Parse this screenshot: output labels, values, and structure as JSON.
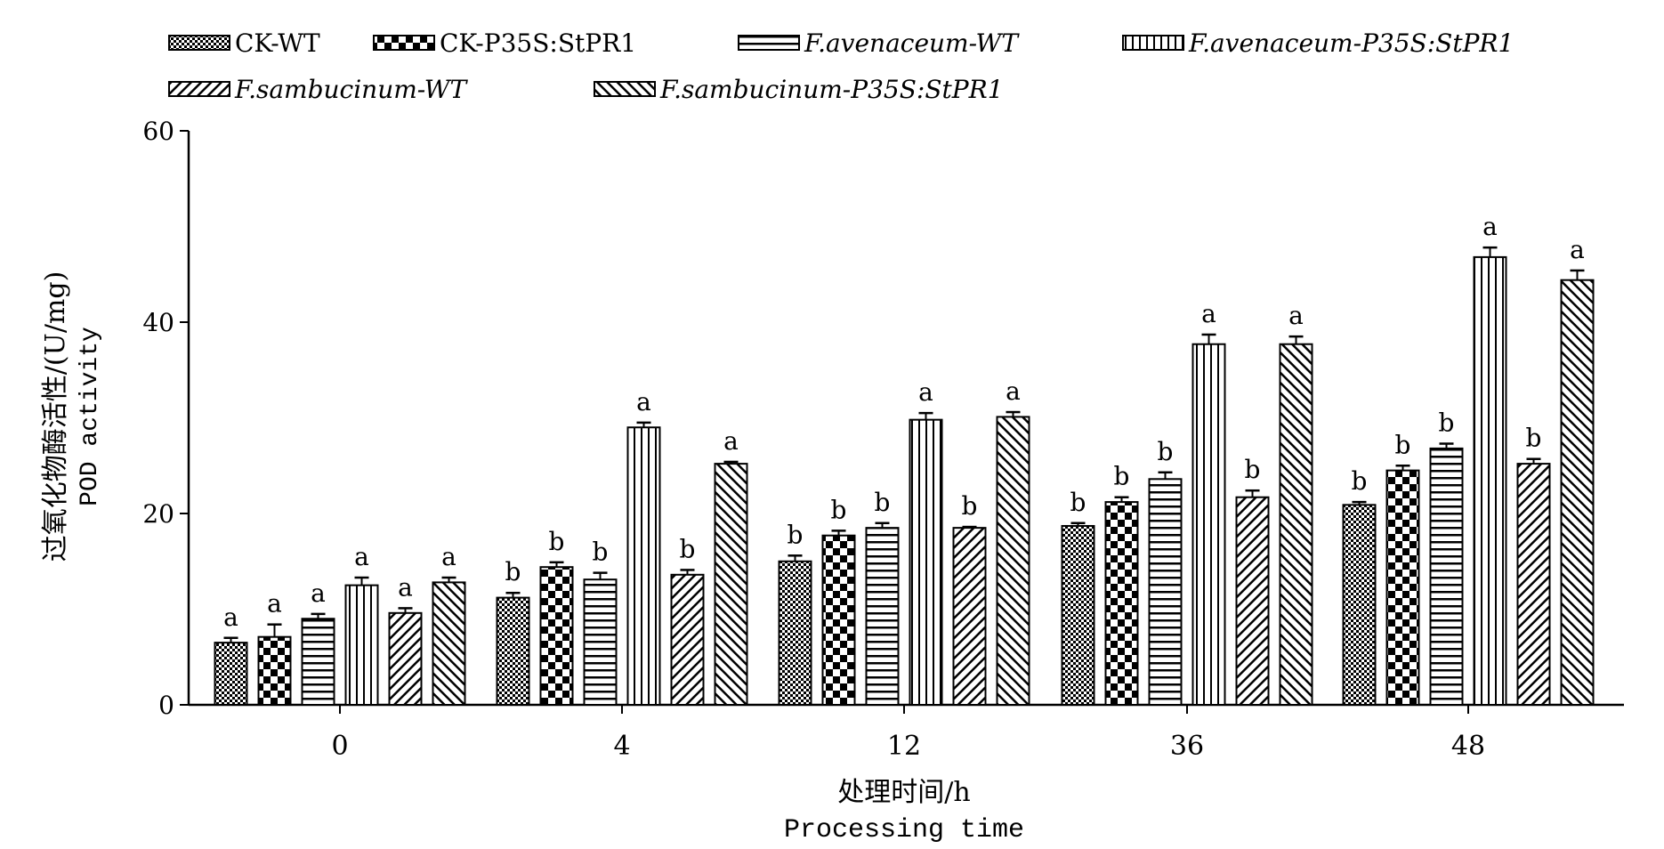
{
  "chart_data": {
    "type": "bar",
    "title": "",
    "xlabel": "处理时间/h",
    "xlabel_en": "Processing time",
    "ylabel": "过氧化物酶活性/(U/mg)",
    "ylabel_en": "POD activity",
    "ylim": [
      0,
      60
    ],
    "yticks": [
      0,
      20,
      40,
      60
    ],
    "categories": [
      "0",
      "4",
      "12",
      "36",
      "48"
    ],
    "legend_placement": "top",
    "series": [
      {
        "name": "CK-WT",
        "pattern": "checker-fine",
        "values": [
          6.5,
          11.2,
          15.0,
          18.7,
          20.9
        ],
        "errors": [
          0.5,
          0.5,
          0.6,
          0.3,
          0.3
        ],
        "letters": [
          "a",
          "b",
          "b",
          "b",
          "b"
        ]
      },
      {
        "name": "CK-P35S:StPR1",
        "pattern": "checker",
        "values": [
          7.1,
          14.4,
          17.7,
          21.2,
          24.5
        ],
        "errors": [
          1.3,
          0.5,
          0.5,
          0.5,
          0.5
        ],
        "letters": [
          "a",
          "b",
          "b",
          "b",
          "b"
        ]
      },
      {
        "name": "F.avenaceum-WT",
        "pattern": "hstripe",
        "values": [
          9.0,
          13.1,
          18.5,
          23.6,
          26.8
        ],
        "errors": [
          0.5,
          0.7,
          0.5,
          0.7,
          0.5
        ],
        "letters": [
          "a",
          "b",
          "b",
          "b",
          "b"
        ]
      },
      {
        "name": "F.avenaceum-P35S:StPR1",
        "pattern": "vstripe",
        "values": [
          12.5,
          29.0,
          29.8,
          37.7,
          46.8
        ],
        "errors": [
          0.8,
          0.5,
          0.7,
          1.0,
          1.0
        ],
        "letters": [
          "a",
          "a",
          "a",
          "a",
          "a"
        ]
      },
      {
        "name": "F.sambucinum-WT",
        "pattern": "diag-right",
        "values": [
          9.6,
          13.6,
          18.5,
          21.7,
          25.2
        ],
        "errors": [
          0.5,
          0.5,
          0.1,
          0.7,
          0.5
        ],
        "letters": [
          "a",
          "b",
          "b",
          "b",
          "b"
        ]
      },
      {
        "name": "F.sambucinum-P35S:StPR1",
        "pattern": "diag-left",
        "values": [
          12.8,
          25.2,
          30.1,
          37.7,
          44.4
        ],
        "errors": [
          0.5,
          0.2,
          0.5,
          0.8,
          1.0
        ],
        "letters": [
          "a",
          "a",
          "a",
          "a",
          "a"
        ]
      }
    ]
  }
}
